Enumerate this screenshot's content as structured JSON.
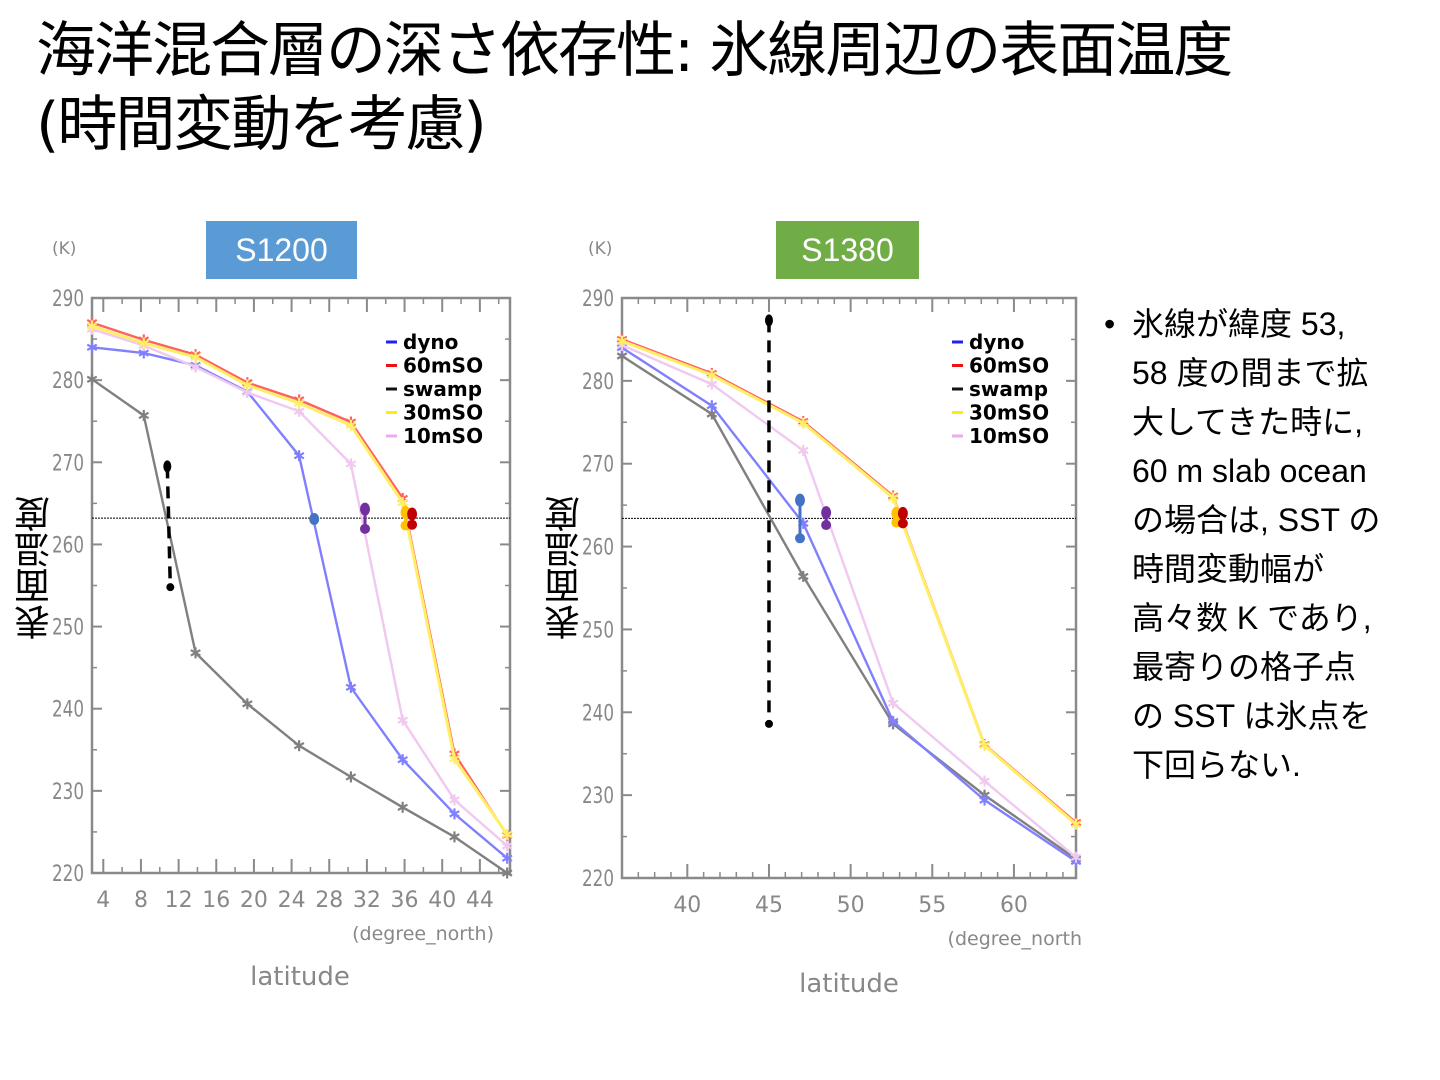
{
  "title": {
    "line1": "海洋混合層の深さ依存性: 氷線周辺の表面温度",
    "line2": "(時間変動を考慮)"
  },
  "bullet": {
    "marker": "•",
    "lines": [
      "氷線が緯度 53,",
      "58 度の間まで拡",
      "大してきた時に,",
      "60 m slab ocean",
      "の場合は, SST の",
      "時間変動幅が",
      "高々数 K であり,",
      "最寄りの格子点",
      "の SST は氷点を",
      "下回らない."
    ]
  },
  "colors": {
    "dyno": "#8080ff",
    "60mSO": "#ff6060",
    "swamp": "#808080",
    "30mSO": "#ffee66",
    "10mSO": "#f0c8f0",
    "legend_dyno": "#2222ee",
    "legend_60mSO": "#ee1111",
    "legend_swamp": "#111111",
    "legend_30mSO": "#ffee00",
    "legend_10mSO": "#eeaaee",
    "marker_blue": "#4472c4",
    "marker_purple": "#7030a0",
    "marker_orange": "#ffc000",
    "marker_red": "#c00000",
    "badge_s1200": "#5b9bd5",
    "badge_s1380": "#70ad47"
  },
  "chart_data": [
    {
      "type": "line",
      "badge": "S1200",
      "unit": "(K)",
      "ylabel": "表面温度",
      "xlabel": "latitude",
      "xunit": "(degree_north)",
      "xlim": [
        2.8,
        47.2
      ],
      "ylim": [
        220,
        290
      ],
      "xticks": [
        4,
        8,
        12,
        16,
        20,
        24,
        28,
        32,
        36,
        40,
        44
      ],
      "yticks": [
        220,
        230,
        240,
        250,
        260,
        270,
        280,
        290
      ],
      "reference_line": 263.2,
      "legend": [
        "dyno",
        "60mSO",
        "swamp",
        "30mSO",
        "10mSO"
      ],
      "legend_position": "top-right",
      "x": [
        2.8,
        8.3,
        13.8,
        19.3,
        24.8,
        30.3,
        35.8,
        41.3,
        46.9
      ],
      "series": [
        {
          "name": "dyno",
          "values": [
            284.0,
            283.3,
            281.8,
            278.6,
            270.8,
            242.6,
            233.8,
            227.2,
            221.8
          ]
        },
        {
          "name": "60mSO",
          "values": [
            287.0,
            284.9,
            283.1,
            279.7,
            277.6,
            274.9,
            265.6,
            234.5,
            224.6
          ]
        },
        {
          "name": "swamp",
          "values": [
            280.1,
            275.7,
            246.8,
            240.6,
            235.5,
            231.7,
            228.0,
            224.4,
            220.0
          ]
        },
        {
          "name": "30mSO",
          "values": [
            286.6,
            284.5,
            282.8,
            279.4,
            277.2,
            274.5,
            265.1,
            233.9,
            224.7
          ]
        },
        {
          "name": "10mSO",
          "values": [
            286.2,
            284.2,
            281.6,
            278.5,
            276.2,
            269.8,
            238.6,
            228.9,
            223.3
          ]
        }
      ],
      "markers": [
        {
          "series": "swamp",
          "x": 10.8,
          "high": 269.5,
          "low": 254.8,
          "dashed": true
        },
        {
          "series": "dyno",
          "x": 26.4,
          "high": 263.1,
          "low": 263.1,
          "dashed": false
        },
        {
          "series": "10mSO",
          "x": 31.8,
          "high": 264.3,
          "low": 261.9,
          "dashed": false
        },
        {
          "series": "30mSO",
          "x": 36.1,
          "high": 263.9,
          "low": 262.3,
          "dashed": false
        },
        {
          "series": "60mSO",
          "x": 36.8,
          "high": 263.7,
          "low": 262.4,
          "dashed": false
        }
      ]
    },
    {
      "type": "line",
      "badge": "S1380",
      "unit": "(K)",
      "ylabel": "表面温度",
      "xlabel": "latitude",
      "xunit": "(degree_north",
      "xlim": [
        36.0,
        63.8
      ],
      "ylim": [
        220,
        290
      ],
      "xticks": [
        40,
        45,
        50,
        55,
        60
      ],
      "yticks": [
        220,
        230,
        240,
        250,
        260,
        270,
        280,
        290
      ],
      "reference_line": 263.4,
      "legend": [
        "dyno",
        "60mSO",
        "swamp",
        "30mSO",
        "10mSO"
      ],
      "legend_position": "top-right",
      "x": [
        36.0,
        41.5,
        47.1,
        52.6,
        58.2,
        63.8
      ],
      "series": [
        {
          "name": "dyno",
          "values": [
            284.0,
            277.0,
            262.8,
            238.9,
            229.4,
            222.0
          ]
        },
        {
          "name": "60mSO",
          "values": [
            285.0,
            280.9,
            275.1,
            266.1,
            236.1,
            226.7
          ]
        },
        {
          "name": "swamp",
          "values": [
            283.0,
            276.0,
            256.4,
            238.6,
            230.0,
            222.3
          ]
        },
        {
          "name": "30mSO",
          "values": [
            284.8,
            280.7,
            274.9,
            265.9,
            236.0,
            226.5
          ]
        },
        {
          "name": "10mSO",
          "values": [
            284.3,
            279.6,
            271.6,
            241.1,
            231.7,
            222.5
          ]
        }
      ],
      "markers": [
        {
          "series": "swamp",
          "x": 45.0,
          "high": 287.3,
          "low": 238.6,
          "dashed": true
        },
        {
          "series": "dyno",
          "x": 46.9,
          "high": 265.6,
          "low": 261.0,
          "dashed": false
        },
        {
          "series": "10mSO",
          "x": 48.5,
          "high": 264.1,
          "low": 262.6,
          "dashed": false
        },
        {
          "series": "30mSO",
          "x": 52.8,
          "high": 264.0,
          "low": 262.9,
          "dashed": false
        },
        {
          "series": "60mSO",
          "x": 53.2,
          "high": 264.0,
          "low": 262.8,
          "dashed": false
        }
      ]
    }
  ]
}
